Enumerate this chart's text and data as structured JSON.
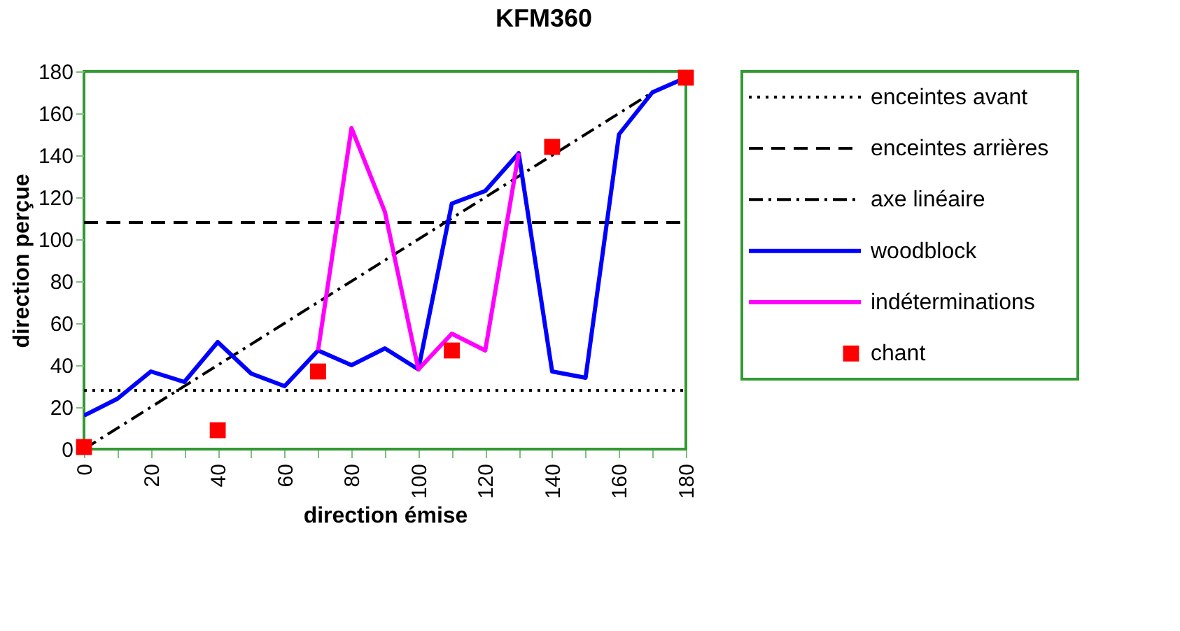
{
  "chart_data": {
    "type": "line",
    "title": "KFM360",
    "xlabel": "direction émise",
    "ylabel": "direction perçue",
    "xlim": [
      0,
      180
    ],
    "ylim": [
      0,
      180
    ],
    "xticks": [
      0,
      {
        "value": 10,
        "label": null
      },
      20,
      {
        "value": 30,
        "label": null
      },
      40,
      {
        "value": 50,
        "label": null
      },
      60,
      {
        "value": 70,
        "label": null
      },
      80,
      {
        "value": 90,
        "label": null
      },
      100,
      {
        "value": 110,
        "label": null
      },
      120,
      {
        "value": 130,
        "label": null
      },
      140,
      {
        "value": 150,
        "label": null
      },
      160,
      {
        "value": 170,
        "label": null
      },
      180
    ],
    "yticks": [
      0,
      20,
      40,
      60,
      80,
      100,
      120,
      140,
      160,
      180
    ],
    "grid": false,
    "legend": "right",
    "series": [
      {
        "name": "enceintes avant",
        "line_style": "dotted",
        "color": "#000000",
        "x": [
          0,
          180
        ],
        "values": [
          28,
          28
        ]
      },
      {
        "name": "enceintes arrières",
        "line_style": "dashed",
        "color": "#000000",
        "x": [
          0,
          180
        ],
        "values": [
          108,
          108
        ]
      },
      {
        "name": "axe linéaire",
        "line_style": "dashdot",
        "color": "#000000",
        "x": [
          0,
          170
        ],
        "values": [
          0,
          170
        ]
      },
      {
        "name": "woodblock",
        "line_style": "solid",
        "color": "#0000ff",
        "x": [
          0,
          10,
          20,
          30,
          40,
          50,
          60,
          70,
          80,
          90,
          100,
          110,
          120,
          130,
          140,
          150,
          160,
          170,
          180
        ],
        "values": [
          16,
          24,
          37,
          32,
          51,
          36,
          30,
          47,
          40,
          48,
          38,
          117,
          123,
          141,
          37,
          34,
          150,
          170,
          177
        ]
      },
      {
        "name": "indéterminations",
        "line_style": "solid",
        "color": "#ff00ff",
        "x": [
          70,
          80,
          90,
          100,
          110,
          120,
          130
        ],
        "values": [
          47,
          153,
          113,
          38,
          55,
          47,
          141
        ]
      },
      {
        "name": "chant",
        "type": "scatter",
        "marker": "square",
        "color": "#ff0000",
        "x": [
          0,
          40,
          70,
          110,
          140,
          180
        ],
        "values": [
          1,
          9,
          37,
          47,
          144,
          177
        ]
      }
    ]
  }
}
